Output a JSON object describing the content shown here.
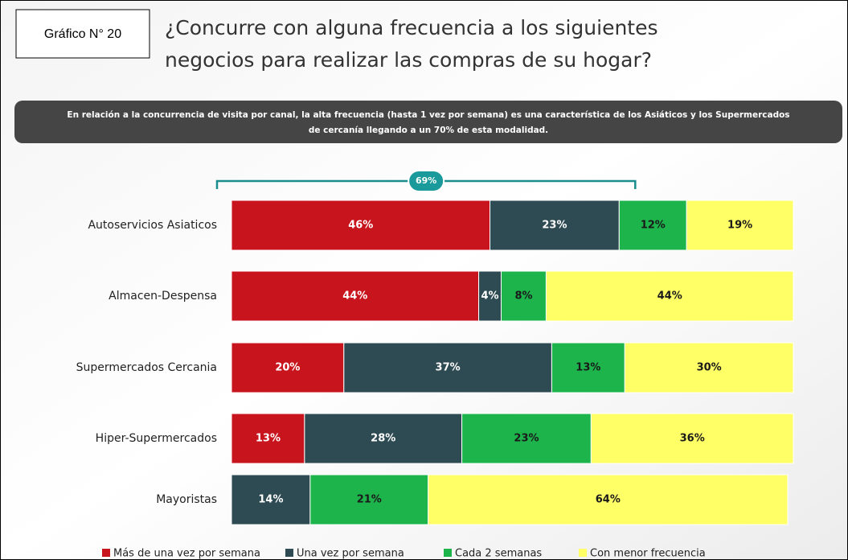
{
  "chart_data": {
    "type": "stacked-bar-horizontal",
    "label": "Gráfico N° 20",
    "title": [
      "¿Concurre con alguna frecuencia a los siguientes",
      "negocios para realizar las compras de su hogar?"
    ],
    "subtitle": [
      "En relación a la concurrencia de visita por canal, la alta frecuencia (hasta 1 vez por semana) es una característica de los Asiáticos y los Supermercados",
      "de cercanía llegando a un 70% de esta modalidad."
    ],
    "annotation": "69%",
    "categories": [
      "Autoservicios Asiaticos",
      "Almacen-Despensa",
      "Supermercados Cercania",
      "Hiper-Supermercados",
      "Mayoristas"
    ],
    "series": [
      {
        "name": "Más de una vez por semana",
        "color": "#c8141c",
        "values": [
          46,
          44,
          20,
          13,
          null
        ],
        "value_labels": [
          "46%",
          "44%",
          "20%",
          "13%",
          null
        ],
        "text_color": "#ffffff"
      },
      {
        "name": "Una vez por semana",
        "color": "#2e4a52",
        "values": [
          23,
          4,
          37,
          28,
          14
        ],
        "value_labels": [
          "23%",
          "4%",
          "37%",
          "28%",
          "14%"
        ],
        "text_color": "#ffffff"
      },
      {
        "name": "Cada 2 semanas",
        "color": "#1db44c",
        "values": [
          12,
          8,
          13,
          23,
          21
        ],
        "value_labels": [
          "12%",
          "8%",
          "13%",
          "23%",
          "21%"
        ],
        "text_color": "#1a1a1a"
      },
      {
        "name": "Con menor frecuencia",
        "color": "#ffff66",
        "values": [
          19,
          44,
          30,
          36,
          64
        ],
        "value_labels": [
          "19%",
          "44%",
          "30%",
          "36%",
          "64%"
        ],
        "text_color": "#1a1a1a"
      }
    ]
  }
}
